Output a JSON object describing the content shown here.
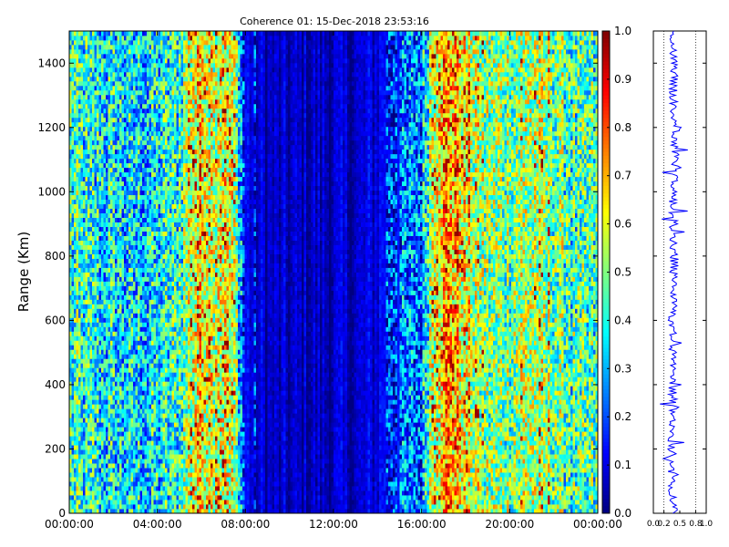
{
  "chart_data": [
    {
      "type": "heatmap",
      "title": "Coherence 01: 15-Dec-2018 23:53:16",
      "xlabel": "",
      "ylabel": "Range (Km)",
      "xlim": [
        "00:00:00",
        "24:00:00"
      ],
      "ylim": [
        0,
        1500
      ],
      "x_ticks": [
        "00:00:00",
        "04:00:00",
        "08:00:00",
        "12:00:00",
        "16:00:00",
        "20:00:00",
        "00:00:00"
      ],
      "y_ticks": [
        0,
        200,
        400,
        600,
        800,
        1000,
        1200,
        1400
      ],
      "colorbar": {
        "colormap": "jet",
        "range": [
          0.0,
          1.0
        ],
        "ticks": [
          "0.0",
          "0.1",
          "0.2",
          "0.3",
          "0.4",
          "0.5",
          "0.6",
          "0.7",
          "0.8",
          "0.9",
          "1.0"
        ]
      },
      "time_profile": {
        "hours": [
          0,
          1,
          2,
          3,
          4,
          5,
          5.5,
          6,
          6.5,
          7,
          7.5,
          8,
          9,
          10,
          11,
          12,
          13,
          14,
          14.5,
          15,
          16,
          16.5,
          17,
          17.5,
          18,
          19,
          20,
          21,
          22,
          23,
          24
        ],
        "mean_coherence": [
          0.42,
          0.38,
          0.35,
          0.33,
          0.36,
          0.42,
          0.58,
          0.65,
          0.6,
          0.62,
          0.55,
          0.12,
          0.06,
          0.05,
          0.06,
          0.06,
          0.06,
          0.1,
          0.18,
          0.2,
          0.25,
          0.6,
          0.72,
          0.7,
          0.6,
          0.5,
          0.5,
          0.55,
          0.5,
          0.42,
          0.42
        ]
      }
    },
    {
      "type": "line",
      "title": "",
      "xlabel": "",
      "ylabel": "",
      "xlim": [
        0,
        1
      ],
      "ylim": [
        0,
        1500
      ],
      "x_ticks": [
        "0.0",
        "0.2",
        "0.5",
        "0.8",
        "1.0"
      ],
      "gridlines_x": [
        0.2,
        0.8
      ],
      "profile": {
        "range_km": [
          0,
          100,
          200,
          300,
          400,
          500,
          600,
          700,
          800,
          900,
          1000,
          1100,
          1200,
          1300,
          1400,
          1500
        ],
        "mean_coherence": [
          0.38,
          0.36,
          0.35,
          0.38,
          0.36,
          0.37,
          0.36,
          0.38,
          0.4,
          0.38,
          0.37,
          0.4,
          0.42,
          0.38,
          0.4,
          0.38
        ]
      }
    }
  ]
}
